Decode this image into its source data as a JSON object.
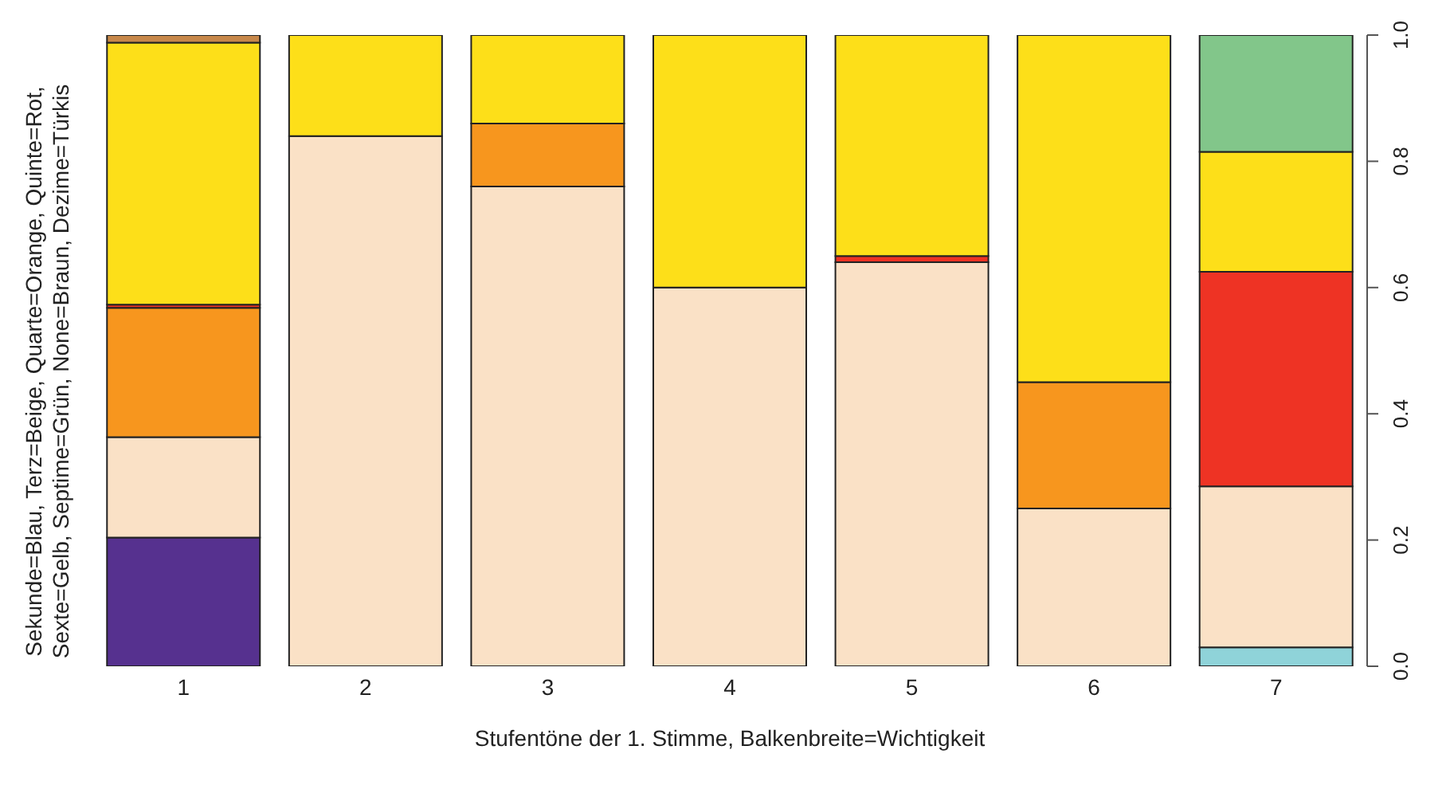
{
  "chart_data": {
    "type": "bar",
    "stacked": true,
    "xlabel": "Stufentöne der 1. Stimme, Balkenbreite=Wichtigkeit",
    "ylabel": "Sekunde=Blau, Terz=Beige, Quarte=Orange, Quinte=Rot,\nSexte=Gelb, Septime=Grün, None=Braun, Dezime=Türkis",
    "categories": [
      "1",
      "2",
      "3",
      "4",
      "5",
      "6",
      "7"
    ],
    "series": [
      {
        "color": "#56318f",
        "values": [
          0.204,
          null,
          null,
          null,
          null,
          null,
          null
        ]
      },
      {
        "color": "#8fd3d9",
        "values": [
          null,
          null,
          null,
          null,
          null,
          null,
          0.03
        ]
      },
      {
        "color": "#fae1c6",
        "values": [
          0.159,
          0.84,
          0.76,
          0.6,
          0.64,
          0.25,
          0.255
        ]
      },
      {
        "color": "#f7961e",
        "values": [
          0.205,
          null,
          0.1,
          null,
          null,
          0.2,
          null
        ]
      },
      {
        "color": "#ee3324",
        "values": [
          0.005,
          null,
          null,
          null,
          0.01,
          null,
          0.34
        ]
      },
      {
        "color": "#fddf19",
        "values": [
          0.415,
          0.16,
          0.14,
          0.4,
          0.35,
          0.55,
          0.19
        ]
      },
      {
        "color": "#82c68a",
        "values": [
          null,
          null,
          null,
          null,
          null,
          null,
          0.185
        ]
      },
      {
        "color": "#c8884a",
        "values": [
          0.012,
          null,
          null,
          null,
          null,
          null,
          null
        ]
      }
    ],
    "ylim": [
      0,
      1
    ],
    "yticks": [
      {
        "value": 0,
        "label": "0.0"
      },
      {
        "value": 0.2,
        "label": "0.2"
      },
      {
        "value": 0.4,
        "label": "0.4"
      },
      {
        "value": 0.6,
        "label": "0.6"
      },
      {
        "value": 0.8,
        "label": "0.8"
      },
      {
        "value": 1,
        "label": "1.0"
      }
    ]
  }
}
